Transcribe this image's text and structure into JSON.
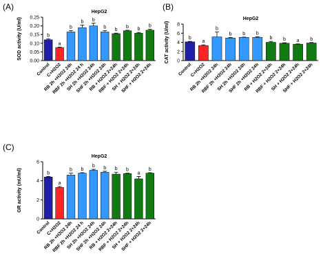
{
  "chart_data": [
    {
      "type": "bar",
      "panel": "(A)",
      "title": "HepG2",
      "y_label": "SOD activity (U/ml)",
      "categories": [
        "Control",
        "C+H2O2",
        "RB 2h +H2O2 24h",
        "RBF 2h +H2O2 24 h",
        "SH 2h +H2O2 24h",
        "SHF 2h +H2O2 24h",
        "RB + H2O2 2+24h",
        "RBF + H2O2 2+24h",
        "SH + H2O2 2+24h",
        "SHF + H2O2 2+24h"
      ],
      "values": [
        0.12,
        0.075,
        0.165,
        0.19,
        0.2,
        0.165,
        0.155,
        0.172,
        0.158,
        0.175
      ],
      "errors": [
        0.005,
        0.003,
        0.008,
        0.015,
        0.015,
        0.008,
        0.003,
        0.003,
        0.004,
        0.006
      ],
      "letters": [
        "b",
        "a",
        "b",
        "b",
        "b",
        "b",
        "b",
        "b",
        "b",
        "b"
      ],
      "colors": [
        "#1f1fa8",
        "#ff2424",
        "#3399ff",
        "#3399ff",
        "#3399ff",
        "#3399ff",
        "#127a12",
        "#127a12",
        "#127a12",
        "#127a12"
      ],
      "ylim": [
        0,
        0.25
      ],
      "yticks": [
        {
          "value": 0,
          "label": "0.00"
        },
        {
          "value": 0.05,
          "label": "0.05"
        },
        {
          "value": 0.1,
          "label": "0.10"
        },
        {
          "value": 0.15,
          "label": "0.15"
        },
        {
          "value": 0.2,
          "label": "0.20"
        },
        {
          "value": 0.25,
          "label": "0.25"
        }
      ]
    },
    {
      "type": "bar",
      "panel": "(B)",
      "title": "HepG2",
      "y_label": "CAT activity (U/ml)",
      "categories": [
        "Control",
        "C+H2O2",
        "RB 2h +H2O2 24h",
        "RBF 2h +H2O2 24h",
        "SH 2h +H2O2 24h",
        "SHF 2h +H2O2 24h",
        "RB + H2O2 2+24h",
        "RBF + H2O2 2+24h",
        "SH + H2O2 2+24h",
        "SHF + H2O2 2+24h"
      ],
      "values": [
        4.1,
        3.3,
        5.2,
        4.95,
        5.1,
        5.1,
        4.0,
        3.8,
        3.6,
        3.85
      ],
      "errors": [
        0.1,
        0.15,
        1.1,
        0.1,
        0.05,
        0.1,
        0.2,
        0.1,
        0.05,
        0.1
      ],
      "letters": [
        "b",
        "a",
        "b",
        "b",
        "b",
        "b",
        "b",
        "b",
        "a",
        "b"
      ],
      "colors": [
        "#1f1fa8",
        "#ff2424",
        "#3399ff",
        "#3399ff",
        "#3399ff",
        "#3399ff",
        "#127a12",
        "#127a12",
        "#127a12",
        "#127a12"
      ],
      "ylim": [
        0,
        8
      ],
      "yticks": [
        0,
        2,
        4,
        6,
        8
      ]
    },
    {
      "type": "bar",
      "panel": "(C)",
      "title": "HepG2",
      "y_label": "GR activity (mU/ml)",
      "categories": [
        "Control",
        "C+H2O2",
        "RB 2h +H2O2 24h",
        "RBF 2h +H2O2 24 h",
        "SH 2h +H2O2 24h",
        "SHF 2h +H2O2 24h",
        "RB + H2O2 2+24h",
        "RBF + H2O2 2+24h",
        "SH + H2O2 2+24h",
        "SHF + H2O2 2+24h"
      ],
      "values": [
        4.4,
        3.3,
        4.6,
        4.8,
        5.1,
        4.9,
        4.7,
        4.75,
        4.2,
        4.8
      ],
      "errors": [
        0.05,
        0.1,
        0.2,
        0.05,
        0.1,
        0.1,
        0.2,
        0.05,
        0.25,
        0.05
      ],
      "letters": [
        "b",
        "a",
        "b",
        "b",
        "b",
        "b",
        "b",
        "b",
        "a",
        "b"
      ],
      "colors": [
        "#1f1fa8",
        "#ff2424",
        "#3399ff",
        "#3399ff",
        "#3399ff",
        "#3399ff",
        "#127a12",
        "#127a12",
        "#127a12",
        "#127a12"
      ],
      "ylim": [
        0,
        6
      ],
      "yticks": [
        0,
        2,
        4,
        6
      ]
    }
  ]
}
